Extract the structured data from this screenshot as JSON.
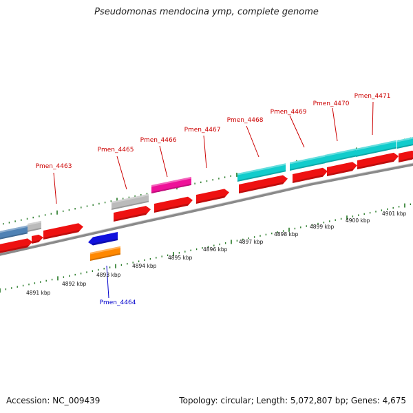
{
  "title": "Pseudomonas mendocina ymp, complete genome",
  "footer": {
    "accession": "Accession: NC_009439",
    "summary": "Topology: circular; Length: 5,072,807 bp; Genes: 4,675"
  },
  "colors": {
    "red": "#ee1111",
    "steel_blue": "#4f82b5",
    "grey": "#bbbbbb",
    "magenta": "#ee1199",
    "cyan": "#11cccc",
    "blue": "#1111dd",
    "orange": "#ff8800",
    "tick": "#227722",
    "backbone": "#8a8a8a",
    "label_top": "#cc0000",
    "label_bottom": "#0000cc"
  },
  "kbp_labels": [
    "4891 kbp",
    "4892 kbp",
    "4893 kbp",
    "4894 kbp",
    "4895 kbp",
    "4896 kbp",
    "4897 kbp",
    "4898 kbp",
    "4899 kbp",
    "4900 kbp",
    "4901 kbp"
  ],
  "gene_labels_top": [
    "Pmen_4463",
    "Pmen_4465",
    "Pmen_4466",
    "Pmen_4467",
    "Pmen_4468",
    "Pmen_4469",
    "Pmen_4470",
    "Pmen_4471"
  ],
  "gene_labels_bottom": [
    "Pmen_4464"
  ]
}
